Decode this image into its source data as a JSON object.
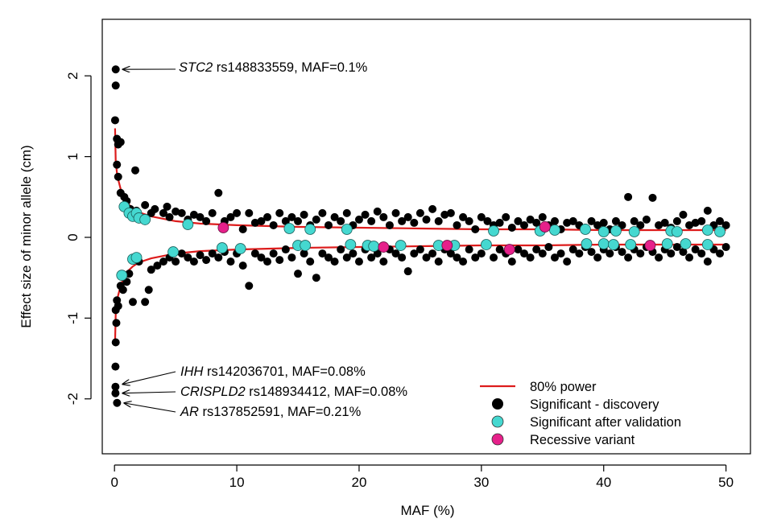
{
  "chart_data": {
    "type": "scatter",
    "title": "",
    "xlabel": "MAF (%)",
    "ylabel": "Effect size of minor allele (cm)",
    "xlim": [
      -1,
      52
    ],
    "ylim": [
      -2.68,
      2.7
    ],
    "xticks": [
      0,
      10,
      20,
      30,
      40,
      50
    ],
    "yticks": [
      2,
      1,
      0,
      -1,
      -2
    ],
    "grid": false,
    "legend_position": "bottom-right",
    "colors": {
      "power_curve": "#dd1c1c",
      "discovery": "#000000",
      "validation": "#45d8d0",
      "recessive": "#e6208a"
    },
    "legend": [
      {
        "label": "80% power",
        "marker": "line"
      },
      {
        "label": "Significant - discovery",
        "marker": "black-dot"
      },
      {
        "label": "Significant after validation",
        "marker": "cyan-dot"
      },
      {
        "label": "Recessive variant",
        "marker": "magenta-dot"
      }
    ],
    "annotations": [
      {
        "gene": "STC2",
        "rest": " rs148833559, MAF=0.1%",
        "target": [
          0.1,
          2.08
        ]
      },
      {
        "gene": "IHH",
        "rest": " rs142036701, MAF=0.08%",
        "target": [
          0.08,
          -1.82
        ]
      },
      {
        "gene": "CRISPLD2",
        "rest": " rs148934412, MAF=0.08%",
        "target": [
          0.08,
          -1.93
        ]
      },
      {
        "gene": "AR",
        "rest": " rs137852591, MAF=0.21%",
        "target": [
          0.21,
          -2.05
        ]
      }
    ],
    "power_curve": {
      "upper": [
        [
          0.05,
          1.35
        ],
        [
          0.1,
          0.95
        ],
        [
          0.2,
          0.8
        ],
        [
          0.3,
          0.72
        ],
        [
          0.5,
          0.6
        ],
        [
          0.75,
          0.5
        ],
        [
          1,
          0.43
        ],
        [
          1.5,
          0.36
        ],
        [
          2,
          0.31
        ],
        [
          3,
          0.26
        ],
        [
          4,
          0.23
        ],
        [
          5,
          0.2
        ],
        [
          7,
          0.17
        ],
        [
          10,
          0.15
        ],
        [
          15,
          0.13
        ],
        [
          20,
          0.12
        ],
        [
          25,
          0.11
        ],
        [
          30,
          0.1
        ],
        [
          35,
          0.1
        ],
        [
          40,
          0.09
        ],
        [
          45,
          0.09
        ],
        [
          50,
          0.09
        ]
      ],
      "lower": [
        [
          0.05,
          -1.3
        ],
        [
          0.1,
          -0.95
        ],
        [
          0.2,
          -0.8
        ],
        [
          0.3,
          -0.72
        ],
        [
          0.5,
          -0.6
        ],
        [
          0.75,
          -0.5
        ],
        [
          1,
          -0.43
        ],
        [
          1.5,
          -0.36
        ],
        [
          2,
          -0.31
        ],
        [
          3,
          -0.26
        ],
        [
          4,
          -0.23
        ],
        [
          5,
          -0.2
        ],
        [
          7,
          -0.17
        ],
        [
          10,
          -0.15
        ],
        [
          15,
          -0.13
        ],
        [
          20,
          -0.12
        ],
        [
          25,
          -0.11
        ],
        [
          30,
          -0.1
        ],
        [
          35,
          -0.1
        ],
        [
          40,
          -0.09
        ],
        [
          45,
          -0.09
        ],
        [
          50,
          -0.09
        ]
      ]
    },
    "discovery_points": [
      [
        0.1,
        2.08
      ],
      [
        0.1,
        1.88
      ],
      [
        0.05,
        1.45
      ],
      [
        0.2,
        1.22
      ],
      [
        0.3,
        1.15
      ],
      [
        0.5,
        1.18
      ],
      [
        0.2,
        0.9
      ],
      [
        0.3,
        0.75
      ],
      [
        1.7,
        0.83
      ],
      [
        0.5,
        0.55
      ],
      [
        0.8,
        0.5
      ],
      [
        1,
        0.45
      ],
      [
        1.3,
        0.35
      ],
      [
        1.8,
        0.33
      ],
      [
        2.5,
        0.4
      ],
      [
        3,
        0.3
      ],
      [
        3.3,
        0.35
      ],
      [
        4,
        0.3
      ],
      [
        4.3,
        0.38
      ],
      [
        4.5,
        0.25
      ],
      [
        5,
        0.32
      ],
      [
        5.5,
        0.3
      ],
      [
        6,
        0.22
      ],
      [
        6.5,
        0.28
      ],
      [
        7,
        0.25
      ],
      [
        7.5,
        0.2
      ],
      [
        8,
        0.3
      ],
      [
        8.5,
        0.55
      ],
      [
        9,
        0.2
      ],
      [
        9.5,
        0.25
      ],
      [
        10,
        0.3
      ],
      [
        10.5,
        0.1
      ],
      [
        11,
        0.3
      ],
      [
        11.5,
        0.18
      ],
      [
        12,
        0.2
      ],
      [
        12.5,
        0.25
      ],
      [
        13,
        0.15
      ],
      [
        13.5,
        0.3
      ],
      [
        14,
        0.2
      ],
      [
        14.5,
        0.25
      ],
      [
        15,
        0.2
      ],
      [
        15.5,
        0.28
      ],
      [
        16,
        0.15
      ],
      [
        16.5,
        0.22
      ],
      [
        17,
        0.3
      ],
      [
        17.5,
        0.15
      ],
      [
        18,
        0.25
      ],
      [
        18.5,
        0.2
      ],
      [
        19,
        0.3
      ],
      [
        19.5,
        0.15
      ],
      [
        20,
        0.22
      ],
      [
        20.5,
        0.28
      ],
      [
        21,
        0.2
      ],
      [
        21.5,
        0.32
      ],
      [
        22,
        0.25
      ],
      [
        22.5,
        0.15
      ],
      [
        23,
        0.3
      ],
      [
        23.5,
        0.2
      ],
      [
        24,
        0.25
      ],
      [
        24.5,
        0.18
      ],
      [
        25,
        0.3
      ],
      [
        25.5,
        0.22
      ],
      [
        26,
        0.35
      ],
      [
        26.5,
        0.2
      ],
      [
        27,
        0.28
      ],
      [
        27.5,
        0.3
      ],
      [
        28,
        0.15
      ],
      [
        28.5,
        0.25
      ],
      [
        29,
        0.2
      ],
      [
        29.5,
        0.1
      ],
      [
        30,
        0.25
      ],
      [
        30.5,
        0.2
      ],
      [
        31,
        0.15
      ],
      [
        31.5,
        0.18
      ],
      [
        32,
        0.25
      ],
      [
        32.5,
        0.12
      ],
      [
        33,
        0.2
      ],
      [
        33.5,
        0.15
      ],
      [
        34,
        0.22
      ],
      [
        34.5,
        0.18
      ],
      [
        35,
        0.25
      ],
      [
        35.5,
        0.15
      ],
      [
        36,
        0.2
      ],
      [
        36.5,
        0.1
      ],
      [
        37,
        0.18
      ],
      [
        37.5,
        0.2
      ],
      [
        38,
        0.15
      ],
      [
        38.5,
        0.12
      ],
      [
        39,
        0.2
      ],
      [
        39.5,
        0.15
      ],
      [
        40,
        0.18
      ],
      [
        40.5,
        0.1
      ],
      [
        41,
        0.2
      ],
      [
        41.5,
        0.15
      ],
      [
        42,
        0.5
      ],
      [
        42.5,
        0.2
      ],
      [
        43,
        0.15
      ],
      [
        43.5,
        0.22
      ],
      [
        44,
        0.49
      ],
      [
        44.5,
        0.15
      ],
      [
        45,
        0.18
      ],
      [
        45.5,
        0.12
      ],
      [
        46,
        0.2
      ],
      [
        46.5,
        0.28
      ],
      [
        47,
        0.15
      ],
      [
        47.5,
        0.18
      ],
      [
        48,
        0.2
      ],
      [
        48.5,
        0.33
      ],
      [
        49,
        0.15
      ],
      [
        49.5,
        0.2
      ],
      [
        50,
        0.15
      ],
      [
        0.1,
        -0.9
      ],
      [
        0.2,
        -0.78
      ],
      [
        0.3,
        -0.85
      ],
      [
        0.5,
        -0.6
      ],
      [
        0.7,
        -0.65
      ],
      [
        1,
        -0.55
      ],
      [
        1.2,
        -0.45
      ],
      [
        1.5,
        -0.8
      ],
      [
        2,
        -0.3
      ],
      [
        2.5,
        -0.8
      ],
      [
        2.8,
        -0.65
      ],
      [
        3,
        -0.4
      ],
      [
        3.5,
        -0.35
      ],
      [
        4,
        -0.3
      ],
      [
        4.5,
        -0.25
      ],
      [
        5,
        -0.3
      ],
      [
        5.5,
        -0.2
      ],
      [
        6,
        -0.25
      ],
      [
        6.5,
        -0.3
      ],
      [
        7,
        -0.22
      ],
      [
        7.5,
        -0.28
      ],
      [
        8,
        -0.2
      ],
      [
        8.5,
        -0.25
      ],
      [
        9,
        -0.18
      ],
      [
        9.5,
        -0.3
      ],
      [
        10,
        -0.2
      ],
      [
        10.5,
        -0.35
      ],
      [
        11,
        -0.6
      ],
      [
        11.5,
        -0.2
      ],
      [
        12,
        -0.25
      ],
      [
        12.5,
        -0.3
      ],
      [
        13,
        -0.2
      ],
      [
        13.5,
        -0.28
      ],
      [
        14,
        -0.15
      ],
      [
        14.5,
        -0.25
      ],
      [
        15,
        -0.45
      ],
      [
        15.5,
        -0.2
      ],
      [
        16,
        -0.3
      ],
      [
        16.5,
        -0.5
      ],
      [
        17,
        -0.2
      ],
      [
        17.5,
        -0.25
      ],
      [
        18,
        -0.3
      ],
      [
        18.5,
        -0.15
      ],
      [
        19,
        -0.25
      ],
      [
        19.5,
        -0.2
      ],
      [
        20,
        -0.3
      ],
      [
        20.5,
        -0.15
      ],
      [
        21,
        -0.25
      ],
      [
        21.5,
        -0.2
      ],
      [
        22,
        -0.3
      ],
      [
        22.5,
        -0.15
      ],
      [
        23,
        -0.2
      ],
      [
        23.5,
        -0.25
      ],
      [
        24,
        -0.42
      ],
      [
        24.5,
        -0.2
      ],
      [
        25,
        -0.15
      ],
      [
        25.5,
        -0.25
      ],
      [
        26,
        -0.2
      ],
      [
        26.5,
        -0.3
      ],
      [
        27,
        -0.15
      ],
      [
        27.5,
        -0.2
      ],
      [
        28,
        -0.25
      ],
      [
        28.5,
        -0.3
      ],
      [
        29,
        -0.15
      ],
      [
        29.5,
        -0.25
      ],
      [
        30,
        -0.2
      ],
      [
        30.5,
        -0.1
      ],
      [
        31,
        -0.25
      ],
      [
        31.5,
        -0.15
      ],
      [
        32,
        -0.2
      ],
      [
        32.5,
        -0.3
      ],
      [
        33,
        -0.15
      ],
      [
        33.5,
        -0.2
      ],
      [
        34,
        -0.25
      ],
      [
        34.5,
        -0.15
      ],
      [
        35,
        -0.2
      ],
      [
        35.5,
        -0.12
      ],
      [
        36,
        -0.25
      ],
      [
        36.5,
        -0.2
      ],
      [
        37,
        -0.3
      ],
      [
        37.5,
        -0.15
      ],
      [
        38,
        -0.2
      ],
      [
        38.5,
        -0.12
      ],
      [
        39,
        -0.18
      ],
      [
        39.5,
        -0.25
      ],
      [
        40,
        -0.15
      ],
      [
        40.5,
        -0.2
      ],
      [
        41,
        -0.12
      ],
      [
        41.5,
        -0.18
      ],
      [
        42,
        -0.25
      ],
      [
        42.5,
        -0.15
      ],
      [
        43,
        -0.2
      ],
      [
        43.5,
        -0.12
      ],
      [
        44,
        -0.18
      ],
      [
        44.5,
        -0.25
      ],
      [
        45,
        -0.15
      ],
      [
        45.5,
        -0.2
      ],
      [
        46,
        -0.12
      ],
      [
        46.5,
        -0.18
      ],
      [
        47,
        -0.25
      ],
      [
        47.5,
        -0.15
      ],
      [
        48,
        -0.2
      ],
      [
        48.5,
        -0.3
      ],
      [
        49,
        -0.15
      ],
      [
        49.5,
        -0.2
      ],
      [
        50,
        -0.12
      ],
      [
        0.08,
        -1.6
      ],
      [
        0.08,
        -1.93
      ],
      [
        0.08,
        -1.85
      ],
      [
        0.21,
        -2.05
      ],
      [
        0.15,
        -1.06
      ],
      [
        0.1,
        -1.3
      ]
    ],
    "validation_points": [
      [
        0.8,
        0.38
      ],
      [
        1.2,
        0.3
      ],
      [
        1.5,
        0.26
      ],
      [
        1.8,
        0.3
      ],
      [
        2,
        0.24
      ],
      [
        2.5,
        0.22
      ],
      [
        6,
        0.16
      ],
      [
        14.3,
        0.11
      ],
      [
        16,
        0.1
      ],
      [
        19,
        0.1
      ],
      [
        31,
        0.08
      ],
      [
        34.8,
        0.08
      ],
      [
        36,
        0.09
      ],
      [
        38.5,
        0.1
      ],
      [
        40,
        0.07
      ],
      [
        41,
        0.08
      ],
      [
        42.5,
        0.07
      ],
      [
        45.5,
        0.08
      ],
      [
        46,
        0.07
      ],
      [
        48.5,
        0.09
      ],
      [
        49.5,
        0.07
      ],
      [
        0.6,
        -0.47
      ],
      [
        1.5,
        -0.27
      ],
      [
        1.8,
        -0.25
      ],
      [
        4.8,
        -0.18
      ],
      [
        8.8,
        -0.13
      ],
      [
        10.3,
        -0.14
      ],
      [
        15,
        -0.1
      ],
      [
        15.6,
        -0.1
      ],
      [
        19.3,
        -0.09
      ],
      [
        20.7,
        -0.1
      ],
      [
        21.2,
        -0.11
      ],
      [
        23.4,
        -0.1
      ],
      [
        26.5,
        -0.1
      ],
      [
        27.8,
        -0.1
      ],
      [
        30.4,
        -0.09
      ],
      [
        38.6,
        -0.08
      ],
      [
        40,
        -0.08
      ],
      [
        40.8,
        -0.09
      ],
      [
        42.2,
        -0.09
      ],
      [
        45.2,
        -0.08
      ],
      [
        46.7,
        -0.08
      ],
      [
        48.5,
        -0.09
      ]
    ],
    "recessive_points": [
      [
        8.9,
        0.12
      ],
      [
        35.2,
        0.13
      ],
      [
        22,
        -0.12
      ],
      [
        27.2,
        -0.1
      ],
      [
        32.3,
        -0.15
      ],
      [
        43.8,
        -0.1
      ]
    ]
  }
}
